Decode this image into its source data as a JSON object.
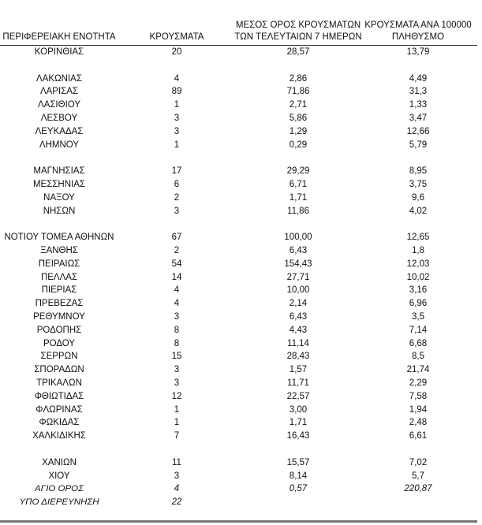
{
  "headers": [
    "ΠΕΡΙΦΕΡΕΙΑΚΗ ΕΝΟΤΗΤΑ",
    "ΚΡΟΥΣΜΑΤΑ",
    "ΜΕΣΟΣ ΟΡΟΣ ΚΡΟΥΣΜΑΤΩΝ ΤΩΝ ΤΕΛΕΥΤΑΙΩΝ 7 ΗΜΕΡΩΝ",
    "ΚΡΟΥΣΜΑΤΑ ΑΝΑ 100000 ΠΛΗΘΥΣΜΟ"
  ],
  "rows": [
    {
      "name": "ΚΟΡΙΝΘΙΑΣ",
      "cases": "20",
      "avg7": "28,57",
      "per100k": "13,79"
    },
    null,
    {
      "name": "ΛΑΚΩΝΙΑΣ",
      "cases": "4",
      "avg7": "2,86",
      "per100k": "4,49"
    },
    {
      "name": "ΛΑΡΙΣΑΣ",
      "cases": "89",
      "avg7": "71,86",
      "per100k": "31,3"
    },
    {
      "name": "ΛΑΣΙΘΙΟΥ",
      "cases": "1",
      "avg7": "2,71",
      "per100k": "1,33"
    },
    {
      "name": "ΛΕΣΒΟΥ",
      "cases": "3",
      "avg7": "5,86",
      "per100k": "3,47"
    },
    {
      "name": "ΛΕΥΚΑΔΑΣ",
      "cases": "3",
      "avg7": "1,29",
      "per100k": "12,66"
    },
    {
      "name": "ΛΗΜΝΟΥ",
      "cases": "1",
      "avg7": "0,29",
      "per100k": "5,79"
    },
    null,
    {
      "name": "ΜΑΓΝΗΣΙΑΣ",
      "cases": "17",
      "avg7": "29,29",
      "per100k": "8,95"
    },
    {
      "name": "ΜΕΣΣΗΝΙΑΣ",
      "cases": "6",
      "avg7": "6,71",
      "per100k": "3,75"
    },
    {
      "name": "ΝΑΞΟΥ",
      "cases": "2",
      "avg7": "1,71",
      "per100k": "9,6"
    },
    {
      "name": "ΝΗΣΩΝ",
      "cases": "3",
      "avg7": "11,86",
      "per100k": "4,02"
    },
    null,
    {
      "name": "ΝΟΤΙΟΥ ΤΟΜΕΑ ΑΘΗΝΩΝ",
      "cases": "67",
      "avg7": "100,00",
      "per100k": "12,65"
    },
    {
      "name": "ΞΑΝΘΗΣ",
      "cases": "2",
      "avg7": "6,43",
      "per100k": "1,8"
    },
    {
      "name": "ΠΕΙΡΑΙΩΣ",
      "cases": "54",
      "avg7": "154,43",
      "per100k": "12,03"
    },
    {
      "name": "ΠΕΛΛΑΣ",
      "cases": "14",
      "avg7": "27,71",
      "per100k": "10,02"
    },
    {
      "name": "ΠΙΕΡΙΑΣ",
      "cases": "4",
      "avg7": "10,00",
      "per100k": "3,16"
    },
    {
      "name": "ΠΡΕΒΕΖΑΣ",
      "cases": "4",
      "avg7": "2,14",
      "per100k": "6,96"
    },
    {
      "name": "ΡΕΘΥΜΝΟΥ",
      "cases": "3",
      "avg7": "6,43",
      "per100k": "3,5"
    },
    {
      "name": "ΡΟΔΟΠΗΣ",
      "cases": "8",
      "avg7": "4,43",
      "per100k": "7,14"
    },
    {
      "name": "ΡΟΔΟΥ",
      "cases": "8",
      "avg7": "11,14",
      "per100k": "6,68"
    },
    {
      "name": "ΣΕΡΡΩΝ",
      "cases": "15",
      "avg7": "28,43",
      "per100k": "8,5"
    },
    {
      "name": "ΣΠΟΡΑΔΩΝ",
      "cases": "3",
      "avg7": "1,57",
      "per100k": "21,74"
    },
    {
      "name": "ΤΡΙΚΑΛΩΝ",
      "cases": "3",
      "avg7": "11,71",
      "per100k": "2,29"
    },
    {
      "name": "ΦΘΙΩΤΙΔΑΣ",
      "cases": "12",
      "avg7": "22,57",
      "per100k": "7,58"
    },
    {
      "name": "ΦΛΩΡΙΝΑΣ",
      "cases": "1",
      "avg7": "3,00",
      "per100k": "1,94"
    },
    {
      "name": "ΦΩΚΙΔΑΣ",
      "cases": "1",
      "avg7": "1,71",
      "per100k": "2,48"
    },
    {
      "name": "ΧΑΛΚΙΔΙΚΗΣ",
      "cases": "7",
      "avg7": "16,43",
      "per100k": "6,61"
    },
    null,
    {
      "name": "ΧΑΝΙΩΝ",
      "cases": "11",
      "avg7": "15,57",
      "per100k": "7,02"
    },
    {
      "name": "ΧΙΟΥ",
      "cases": "3",
      "avg7": "8,14",
      "per100k": "5,7"
    },
    {
      "name": "ΑΓΙΟ ΟΡΟΣ",
      "cases": "4",
      "avg7": "0,57",
      "per100k": "220,87",
      "italic": true
    },
    {
      "name": "ΥΠΟ ΔΙΕΡΕΥΝΗΣΗ",
      "cases": "22",
      "avg7": "",
      "per100k": "",
      "italic": true
    }
  ]
}
